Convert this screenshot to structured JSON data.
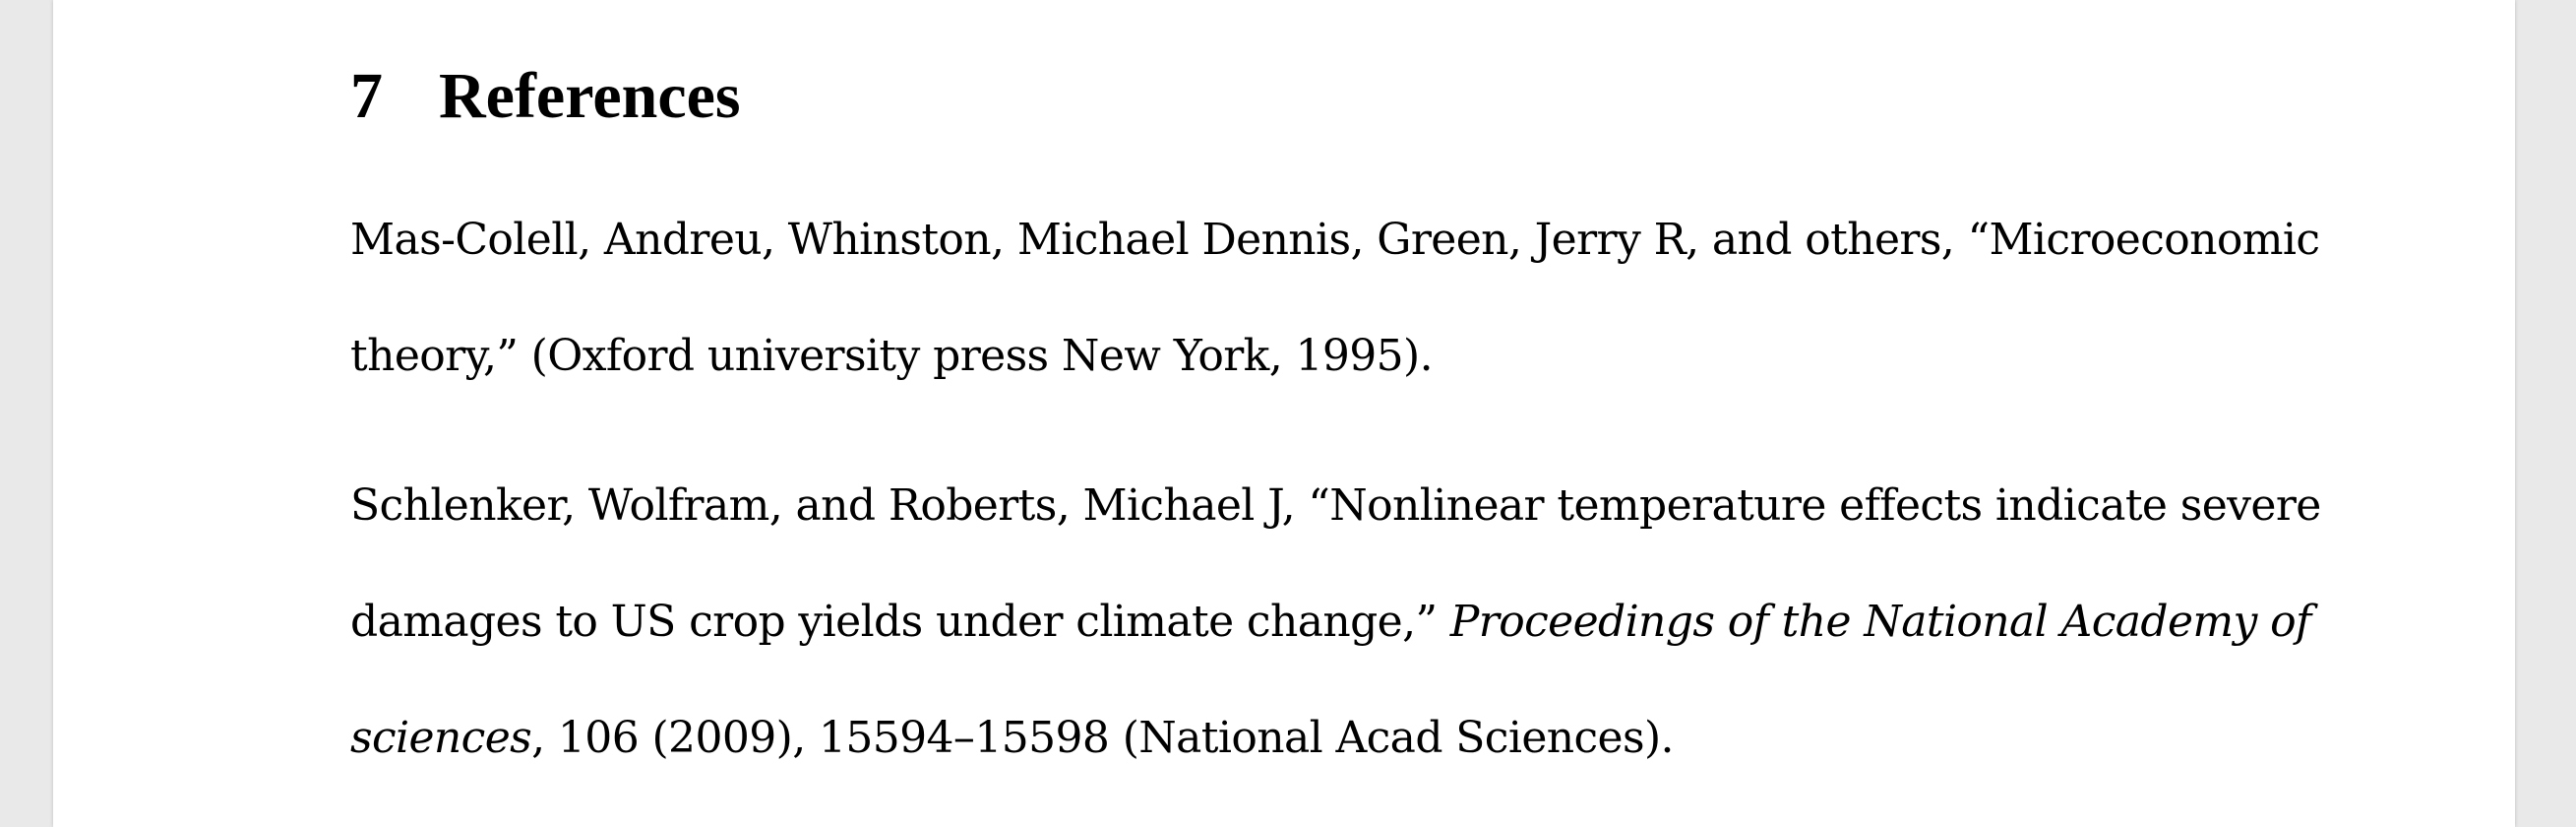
{
  "section": {
    "number": "7",
    "title": "References"
  },
  "references": [
    {
      "line1": "Mas-Colell, Andreu, Whinston, Michael Dennis, Green, Jerry R, and others, “Microeconomic",
      "line2": "theory,” (Oxford university press New York, 1995)."
    },
    {
      "line1": "Schlenker, Wolfram, and Roberts, Michael J, “Nonlinear temperature effects indicate severe",
      "line2_plain": "damages to US crop yields under climate change,” ",
      "line2_italic": "Proceedings of the National Academy of",
      "line3_italic": "sciences",
      "line3_plain": ", 106 (2009), 15594–15598 (National Acad Sciences)."
    }
  ]
}
